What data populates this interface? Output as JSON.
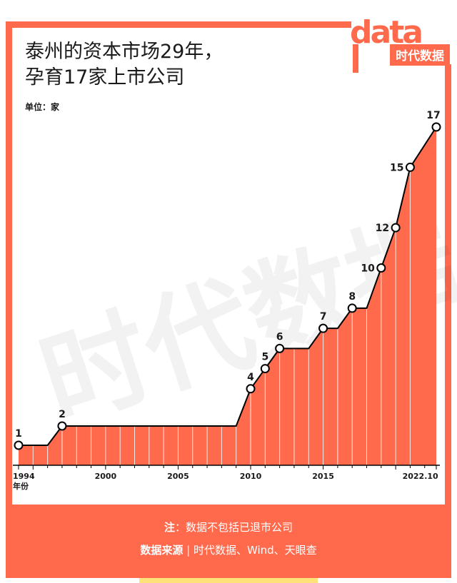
{
  "title": "泰州的资本市场29年，\n孕育17家上市公司",
  "unit_label": "单位：家",
  "logo": {
    "text_main": "data",
    "text_sub": "时代数据",
    "color": "#FF6A4D"
  },
  "watermark": "时代数据",
  "footer": {
    "note_label": "注",
    "note_text": "：数据不包括已退市公司",
    "source_label": "数据来源",
    "source_sep": " | ",
    "source_text": "时代数据、Wind、天眼查"
  },
  "colors": {
    "accent": "#FF6A4D",
    "fill": "#FF6A4D",
    "line": "#000000",
    "stripe": "#FFE27A"
  },
  "chart_data": {
    "type": "area",
    "title": "泰州的资本市场29年，孕育17家上市公司",
    "ylabel": "单位：家",
    "xlabel": "年份",
    "x_ticks": [
      "1994",
      "2000",
      "2005",
      "2010",
      "2015",
      "2022.10"
    ],
    "xlim": [
      1994,
      2022.8
    ],
    "ylim": [
      0,
      17
    ],
    "grid": false,
    "series": [
      {
        "x": [
          1994,
          1995,
          1996,
          1997,
          1998,
          1999,
          2000,
          2001,
          2002,
          2003,
          2004,
          2005,
          2006,
          2007,
          2008,
          2009,
          2010,
          2011,
          2012,
          2013,
          2014,
          2015,
          2016,
          2017,
          2018,
          2019,
          2020,
          2021,
          2022.8
        ],
        "values": [
          1,
          1,
          1,
          2,
          2,
          2,
          2,
          2,
          2,
          2,
          2,
          2,
          2,
          2,
          2,
          2,
          4,
          5,
          6,
          6,
          6,
          7,
          7,
          8,
          8,
          10,
          12,
          15,
          17
        ]
      }
    ],
    "markers": [
      {
        "x": 1994,
        "label": "1"
      },
      {
        "x": 1997,
        "label": "2"
      },
      {
        "x": 2010,
        "label": "4"
      },
      {
        "x": 2011,
        "label": "5"
      },
      {
        "x": 2012,
        "label": "6"
      },
      {
        "x": 2015,
        "label": "7"
      },
      {
        "x": 2017,
        "label": "8"
      },
      {
        "x": 2019,
        "label": "10"
      },
      {
        "x": 2020,
        "label": "12"
      },
      {
        "x": 2021,
        "label": "15"
      },
      {
        "x": 2022.8,
        "label": "17"
      }
    ]
  }
}
